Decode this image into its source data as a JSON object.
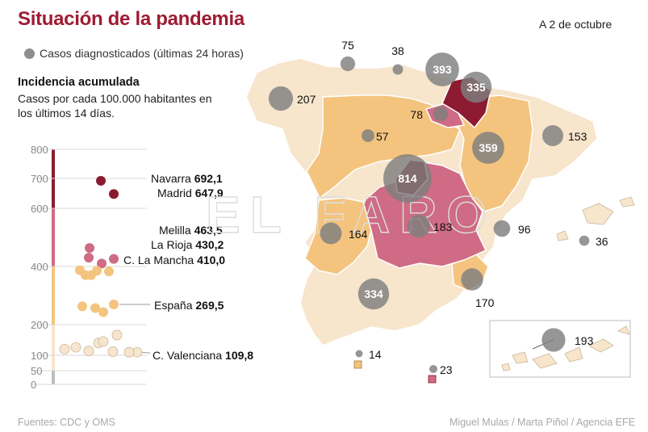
{
  "title": "Situación de la pandemia",
  "date": "A 2 de octubre",
  "legend_label": "Casos diagnosticados (últimas 24 horas)",
  "incidence_title": "Incidencia acumulada",
  "incidence_subtitle": "Casos por cada 100.000 habitantes en los últimos 14 días.",
  "footer_source": "Fuentes: CDC y OMS",
  "footer_credit": "Miguel Mulas / Marta Piñol / Agencia EFE",
  "watermark": "EL FARO",
  "colors": {
    "title": "#9e1b32",
    "level_1": "#f7e5cc",
    "level_2": "#f4c47f",
    "level_3": "#cf6b84",
    "level_4": "#8c1b31",
    "bubble": "#7f7f7f"
  },
  "chart_data": [
    {
      "type": "scatter",
      "title": "Incidencia acumulada",
      "ylim": [
        0,
        800
      ],
      "y_ticks": [
        "0",
        "50",
        "100",
        "200",
        "400",
        "600",
        "700",
        "800"
      ],
      "y_tick_values": [
        0,
        50,
        100,
        200,
        400,
        600,
        700,
        800
      ],
      "labeled_points": [
        {
          "name": "Navarra",
          "value": "692,1"
        },
        {
          "name": "Madrid",
          "value": "647,9"
        },
        {
          "name": "Melilla",
          "value": "463,5"
        },
        {
          "name": "La Rioja",
          "value": "430,2"
        },
        {
          "name": "C. La Mancha",
          "value": "410,0"
        },
        {
          "name": "España",
          "value": "269,5"
        },
        {
          "name": "C. Valenciana",
          "value": "109,8"
        }
      ],
      "points": [
        {
          "y": 692.1,
          "level": 4
        },
        {
          "y": 647.9,
          "level": 4
        },
        {
          "y": 463.5,
          "level": 3
        },
        {
          "y": 430.2,
          "level": 3
        },
        {
          "y": 410.0,
          "level": 3
        },
        {
          "y": 426,
          "level": 3
        },
        {
          "y": 387,
          "level": 2
        },
        {
          "y": 370,
          "level": 2
        },
        {
          "y": 383,
          "level": 2
        },
        {
          "y": 370,
          "level": 2
        },
        {
          "y": 385,
          "level": 2
        },
        {
          "y": 269.5,
          "level": 2
        },
        {
          "y": 263,
          "level": 2
        },
        {
          "y": 257,
          "level": 2
        },
        {
          "y": 243,
          "level": 2
        },
        {
          "y": 126,
          "level": 1
        },
        {
          "y": 114,
          "level": 1
        },
        {
          "y": 140,
          "level": 1
        },
        {
          "y": 166,
          "level": 1
        },
        {
          "y": 145,
          "level": 1
        },
        {
          "y": 109.8,
          "level": 1
        },
        {
          "y": 110,
          "level": 1
        },
        {
          "y": 112,
          "level": 1
        },
        {
          "y": 120,
          "level": 1
        }
      ]
    },
    {
      "type": "scatter",
      "title": "Casos diagnosticados (últimas 24 horas)",
      "regions": [
        {
          "label": "75",
          "value": 75
        },
        {
          "label": "38",
          "value": 38
        },
        {
          "label": "393",
          "value": 393
        },
        {
          "label": "335",
          "value": 335
        },
        {
          "label": "207",
          "value": 207
        },
        {
          "label": "78",
          "value": 78
        },
        {
          "label": "57",
          "value": 57
        },
        {
          "label": "359",
          "value": 359
        },
        {
          "label": "153",
          "value": 153
        },
        {
          "label": "814",
          "value": 814
        },
        {
          "label": "183",
          "value": 183
        },
        {
          "label": "164",
          "value": 164
        },
        {
          "label": "96",
          "value": 96
        },
        {
          "label": "36",
          "value": 36
        },
        {
          "label": "334",
          "value": 334
        },
        {
          "label": "170",
          "value": 170
        },
        {
          "label": "193",
          "value": 193
        },
        {
          "label": "14",
          "value": 14
        },
        {
          "label": "23",
          "value": 23
        }
      ]
    }
  ]
}
